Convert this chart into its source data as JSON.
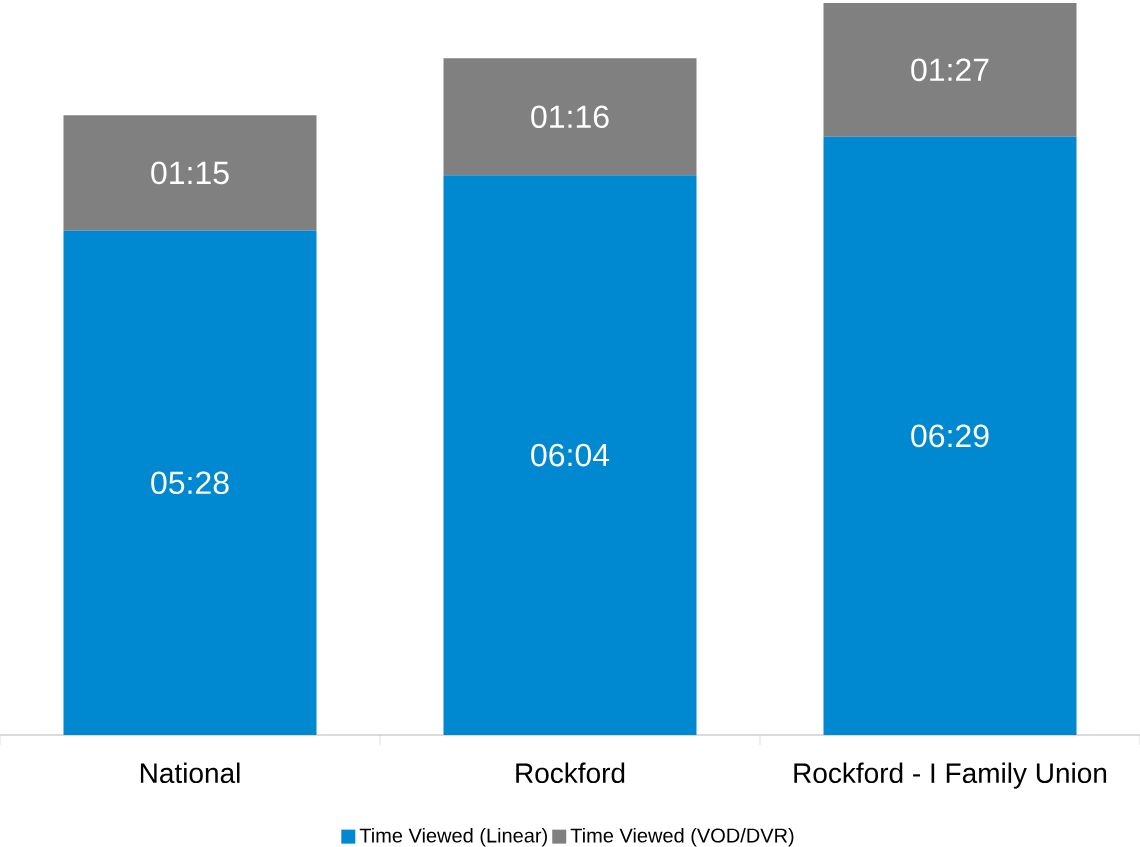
{
  "chart_data": {
    "type": "bar",
    "stacked": true,
    "legend": "bottom",
    "categories": [
      "National",
      "Rockford",
      "Rockford - I Family Union"
    ],
    "series": [
      {
        "name": "Time Viewed (Linear)",
        "color": "#0088d1",
        "values": [
          328,
          364,
          389
        ],
        "value_labels": [
          "05:28",
          "06:04",
          "06:29"
        ]
      },
      {
        "name": "Time Viewed (VOD/DVR)",
        "color": "#808080",
        "values": [
          75,
          76,
          87
        ],
        "value_labels": [
          "01:15",
          "01:16",
          "01:27"
        ]
      }
    ]
  }
}
